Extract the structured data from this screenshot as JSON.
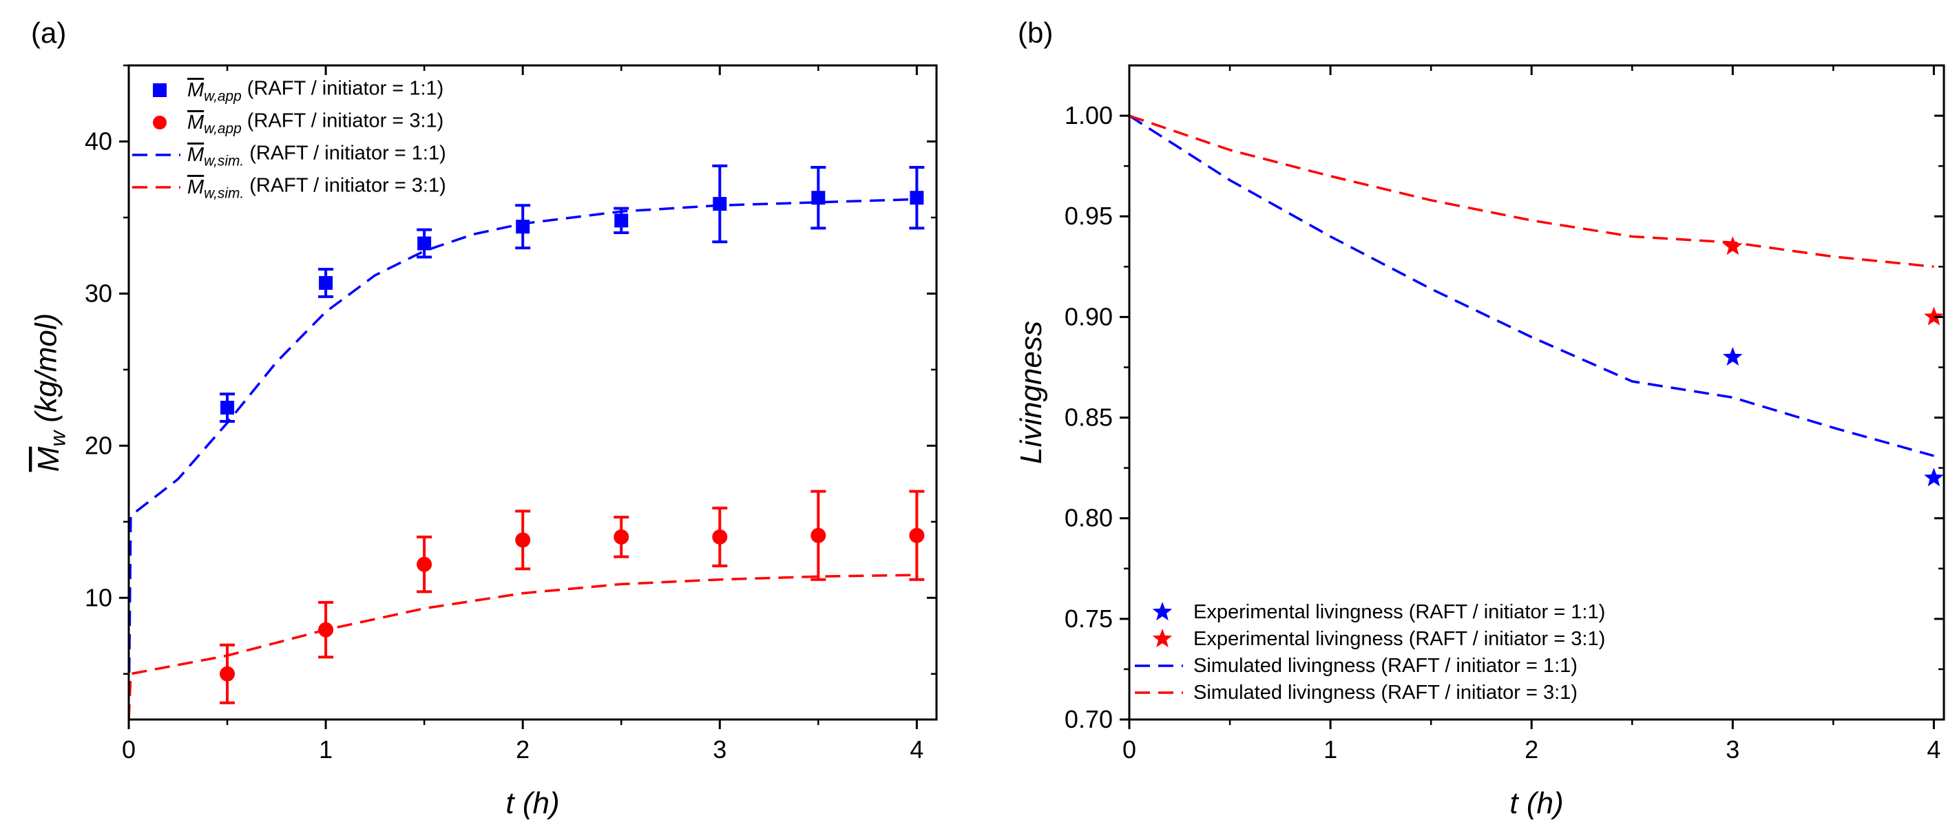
{
  "chart_data": [
    {
      "panel": "(a)",
      "type": "scatter",
      "xlabel": "t (h)",
      "ylabel": {
        "symbol": "M",
        "sub": "w",
        "rest": " (kg/mol)"
      },
      "xlim": [
        0,
        4.1
      ],
      "ylim": [
        2,
        45
      ],
      "xticks": [
        0,
        1,
        2,
        3,
        4
      ],
      "yticks": [
        10,
        20,
        30,
        40
      ],
      "grid": false,
      "legend_position": "top-left",
      "series": [
        {
          "kind": "points",
          "marker": "square",
          "color": "#0000FF",
          "legend": {
            "symbol": "M",
            "sub": "w,app",
            "rest": " (RAFT / initiator = 1:1)"
          },
          "x": [
            0.5,
            1.0,
            1.5,
            2.0,
            2.5,
            3.0,
            3.5,
            4.0
          ],
          "y": [
            22.5,
            30.7,
            33.3,
            34.4,
            34.8,
            35.9,
            36.3,
            36.3
          ],
          "yerr": [
            0.9,
            0.9,
            0.9,
            1.4,
            0.8,
            2.5,
            2.0,
            2.0
          ]
        },
        {
          "kind": "points",
          "marker": "circle",
          "color": "#FF0000",
          "legend": {
            "symbol": "M",
            "sub": "w,app",
            "rest": " (RAFT / initiator = 3:1)"
          },
          "x": [
            0.5,
            1.0,
            1.5,
            2.0,
            2.5,
            3.0,
            3.5,
            4.0
          ],
          "y": [
            5.0,
            7.9,
            12.2,
            13.8,
            14.0,
            14.0,
            14.1,
            14.1
          ],
          "yerr": [
            1.9,
            1.8,
            1.8,
            1.9,
            1.3,
            1.9,
            2.9,
            2.9
          ]
        },
        {
          "kind": "line",
          "dash": true,
          "color": "#0000FF",
          "legend": {
            "symbol": "M",
            "sub": "w,sim.",
            "rest": " (RAFT / initiator = 1:1)"
          },
          "x": [
            0,
            0.01,
            0.25,
            0.5,
            0.75,
            1.0,
            1.25,
            1.5,
            1.75,
            2.0,
            2.5,
            3.0,
            3.5,
            4.0
          ],
          "y": [
            2,
            15.4,
            17.8,
            21.5,
            25.5,
            28.8,
            31.2,
            32.8,
            33.9,
            34.6,
            35.4,
            35.8,
            36.0,
            36.2
          ]
        },
        {
          "kind": "line",
          "dash": true,
          "color": "#FF0000",
          "legend": {
            "symbol": "M",
            "sub": "w,sim.",
            "rest": " (RAFT / initiator = 3:1)"
          },
          "x": [
            0,
            0.01,
            0.5,
            1.0,
            1.5,
            2.0,
            2.5,
            3.0,
            3.5,
            4.0
          ],
          "y": [
            2,
            5.0,
            6.2,
            7.9,
            9.3,
            10.3,
            10.9,
            11.2,
            11.4,
            11.5
          ]
        }
      ]
    },
    {
      "panel": "(b)",
      "type": "scatter",
      "xlabel": "t (h)",
      "ylabel": {
        "symbol": "",
        "sub": "",
        "rest": "Livingness"
      },
      "xlim": [
        0,
        4.05
      ],
      "ylim": [
        0.7,
        1.025
      ],
      "xticks": [
        0,
        1,
        2,
        3,
        4
      ],
      "yticks": [
        0.7,
        0.75,
        0.8,
        0.85,
        0.9,
        0.95,
        1.0
      ],
      "ytick_labels": [
        "0.70",
        "0.75",
        "0.80",
        "0.85",
        "0.90",
        "0.95",
        "1.00"
      ],
      "grid": false,
      "legend_position": "bottom-left",
      "series": [
        {
          "kind": "points",
          "marker": "star",
          "color": "#0000FF",
          "legend": {
            "symbol": "",
            "sub": "",
            "rest": "Experimental livingness (RAFT / initiator = 1:1)"
          },
          "x": [
            3.0,
            4.0
          ],
          "y": [
            0.88,
            0.82
          ]
        },
        {
          "kind": "points",
          "marker": "star",
          "color": "#FF0000",
          "legend": {
            "symbol": "",
            "sub": "",
            "rest": "Experimental livingness (RAFT / initiator = 3:1)"
          },
          "x": [
            3.0,
            4.0
          ],
          "y": [
            0.935,
            0.9
          ]
        },
        {
          "kind": "line",
          "dash": true,
          "color": "#0000FF",
          "legend": {
            "symbol": "",
            "sub": "",
            "rest": "Simulated livingness (RAFT / initiator = 1:1)"
          },
          "x": [
            0,
            0.5,
            1.0,
            1.5,
            2.0,
            2.5,
            3.0,
            3.5,
            4.0
          ],
          "y": [
            1.0,
            0.968,
            0.94,
            0.914,
            0.89,
            0.868,
            0.86,
            0.845,
            0.831
          ]
        },
        {
          "kind": "line",
          "dash": true,
          "color": "#FF0000",
          "legend": {
            "symbol": "",
            "sub": "",
            "rest": "Simulated livingness (RAFT / initiator = 3:1)"
          },
          "x": [
            0,
            0.5,
            1.0,
            1.5,
            2.0,
            2.5,
            3.0,
            3.5,
            4.0
          ],
          "y": [
            1.0,
            0.983,
            0.97,
            0.958,
            0.948,
            0.94,
            0.937,
            0.93,
            0.925
          ]
        }
      ]
    }
  ]
}
